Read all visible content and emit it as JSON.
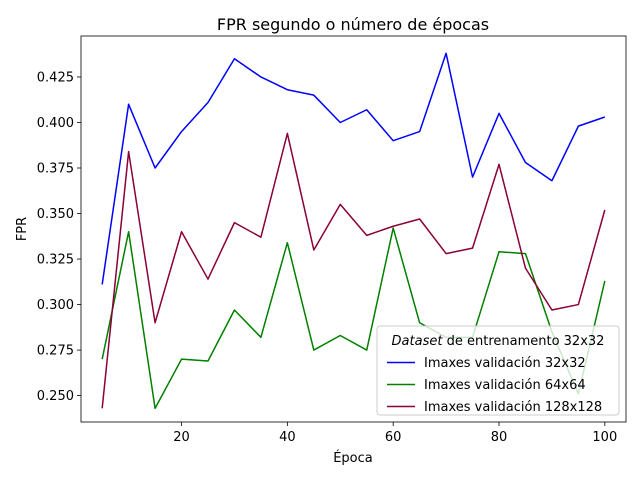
{
  "chart_data": {
    "type": "line",
    "title": "FPR segundo o número de épocas",
    "xlabel": "Época",
    "ylabel": "FPR",
    "xlim": [
      1,
      104
    ],
    "ylim": [
      0.2355,
      0.4475
    ],
    "xticks": [
      20,
      40,
      60,
      80,
      100
    ],
    "yticks": [
      0.25,
      0.275,
      0.3,
      0.325,
      0.35,
      0.375,
      0.4,
      0.425
    ],
    "ytick_labels": [
      "0.250",
      "0.275",
      "0.300",
      "0.325",
      "0.350",
      "0.375",
      "0.400",
      "0.425"
    ],
    "grid": false,
    "legend": {
      "placement": "lower-right",
      "title_italic": "Dataset",
      "title_rest": " de entrenamento 32x32"
    },
    "x": [
      5,
      10,
      15,
      20,
      25,
      30,
      35,
      40,
      45,
      50,
      55,
      60,
      65,
      70,
      75,
      80,
      85,
      90,
      95,
      100
    ],
    "series": [
      {
        "name": "Imaxes validación 32x32",
        "color": "#0000ff",
        "values": [
          0.311,
          0.41,
          0.375,
          0.395,
          0.411,
          0.435,
          0.425,
          0.418,
          0.415,
          0.4,
          0.407,
          0.39,
          0.395,
          0.438,
          0.37,
          0.405,
          0.378,
          0.368,
          0.398,
          0.403
        ]
      },
      {
        "name": "Imaxes validación 64x64",
        "color": "#008000",
        "values": [
          0.27,
          0.34,
          0.243,
          0.27,
          0.269,
          0.297,
          0.282,
          0.334,
          0.275,
          0.283,
          0.275,
          0.342,
          0.29,
          0.282,
          0.282,
          0.329,
          0.328,
          0.285,
          0.251,
          0.313
        ]
      },
      {
        "name": "Imaxes validación 128x128",
        "color": "#8b0035",
        "values": [
          0.243,
          0.384,
          0.29,
          0.34,
          0.314,
          0.345,
          0.337,
          0.394,
          0.33,
          0.355,
          0.338,
          0.343,
          0.347,
          0.328,
          0.331,
          0.377,
          0.32,
          0.297,
          0.3,
          0.352
        ]
      }
    ]
  }
}
